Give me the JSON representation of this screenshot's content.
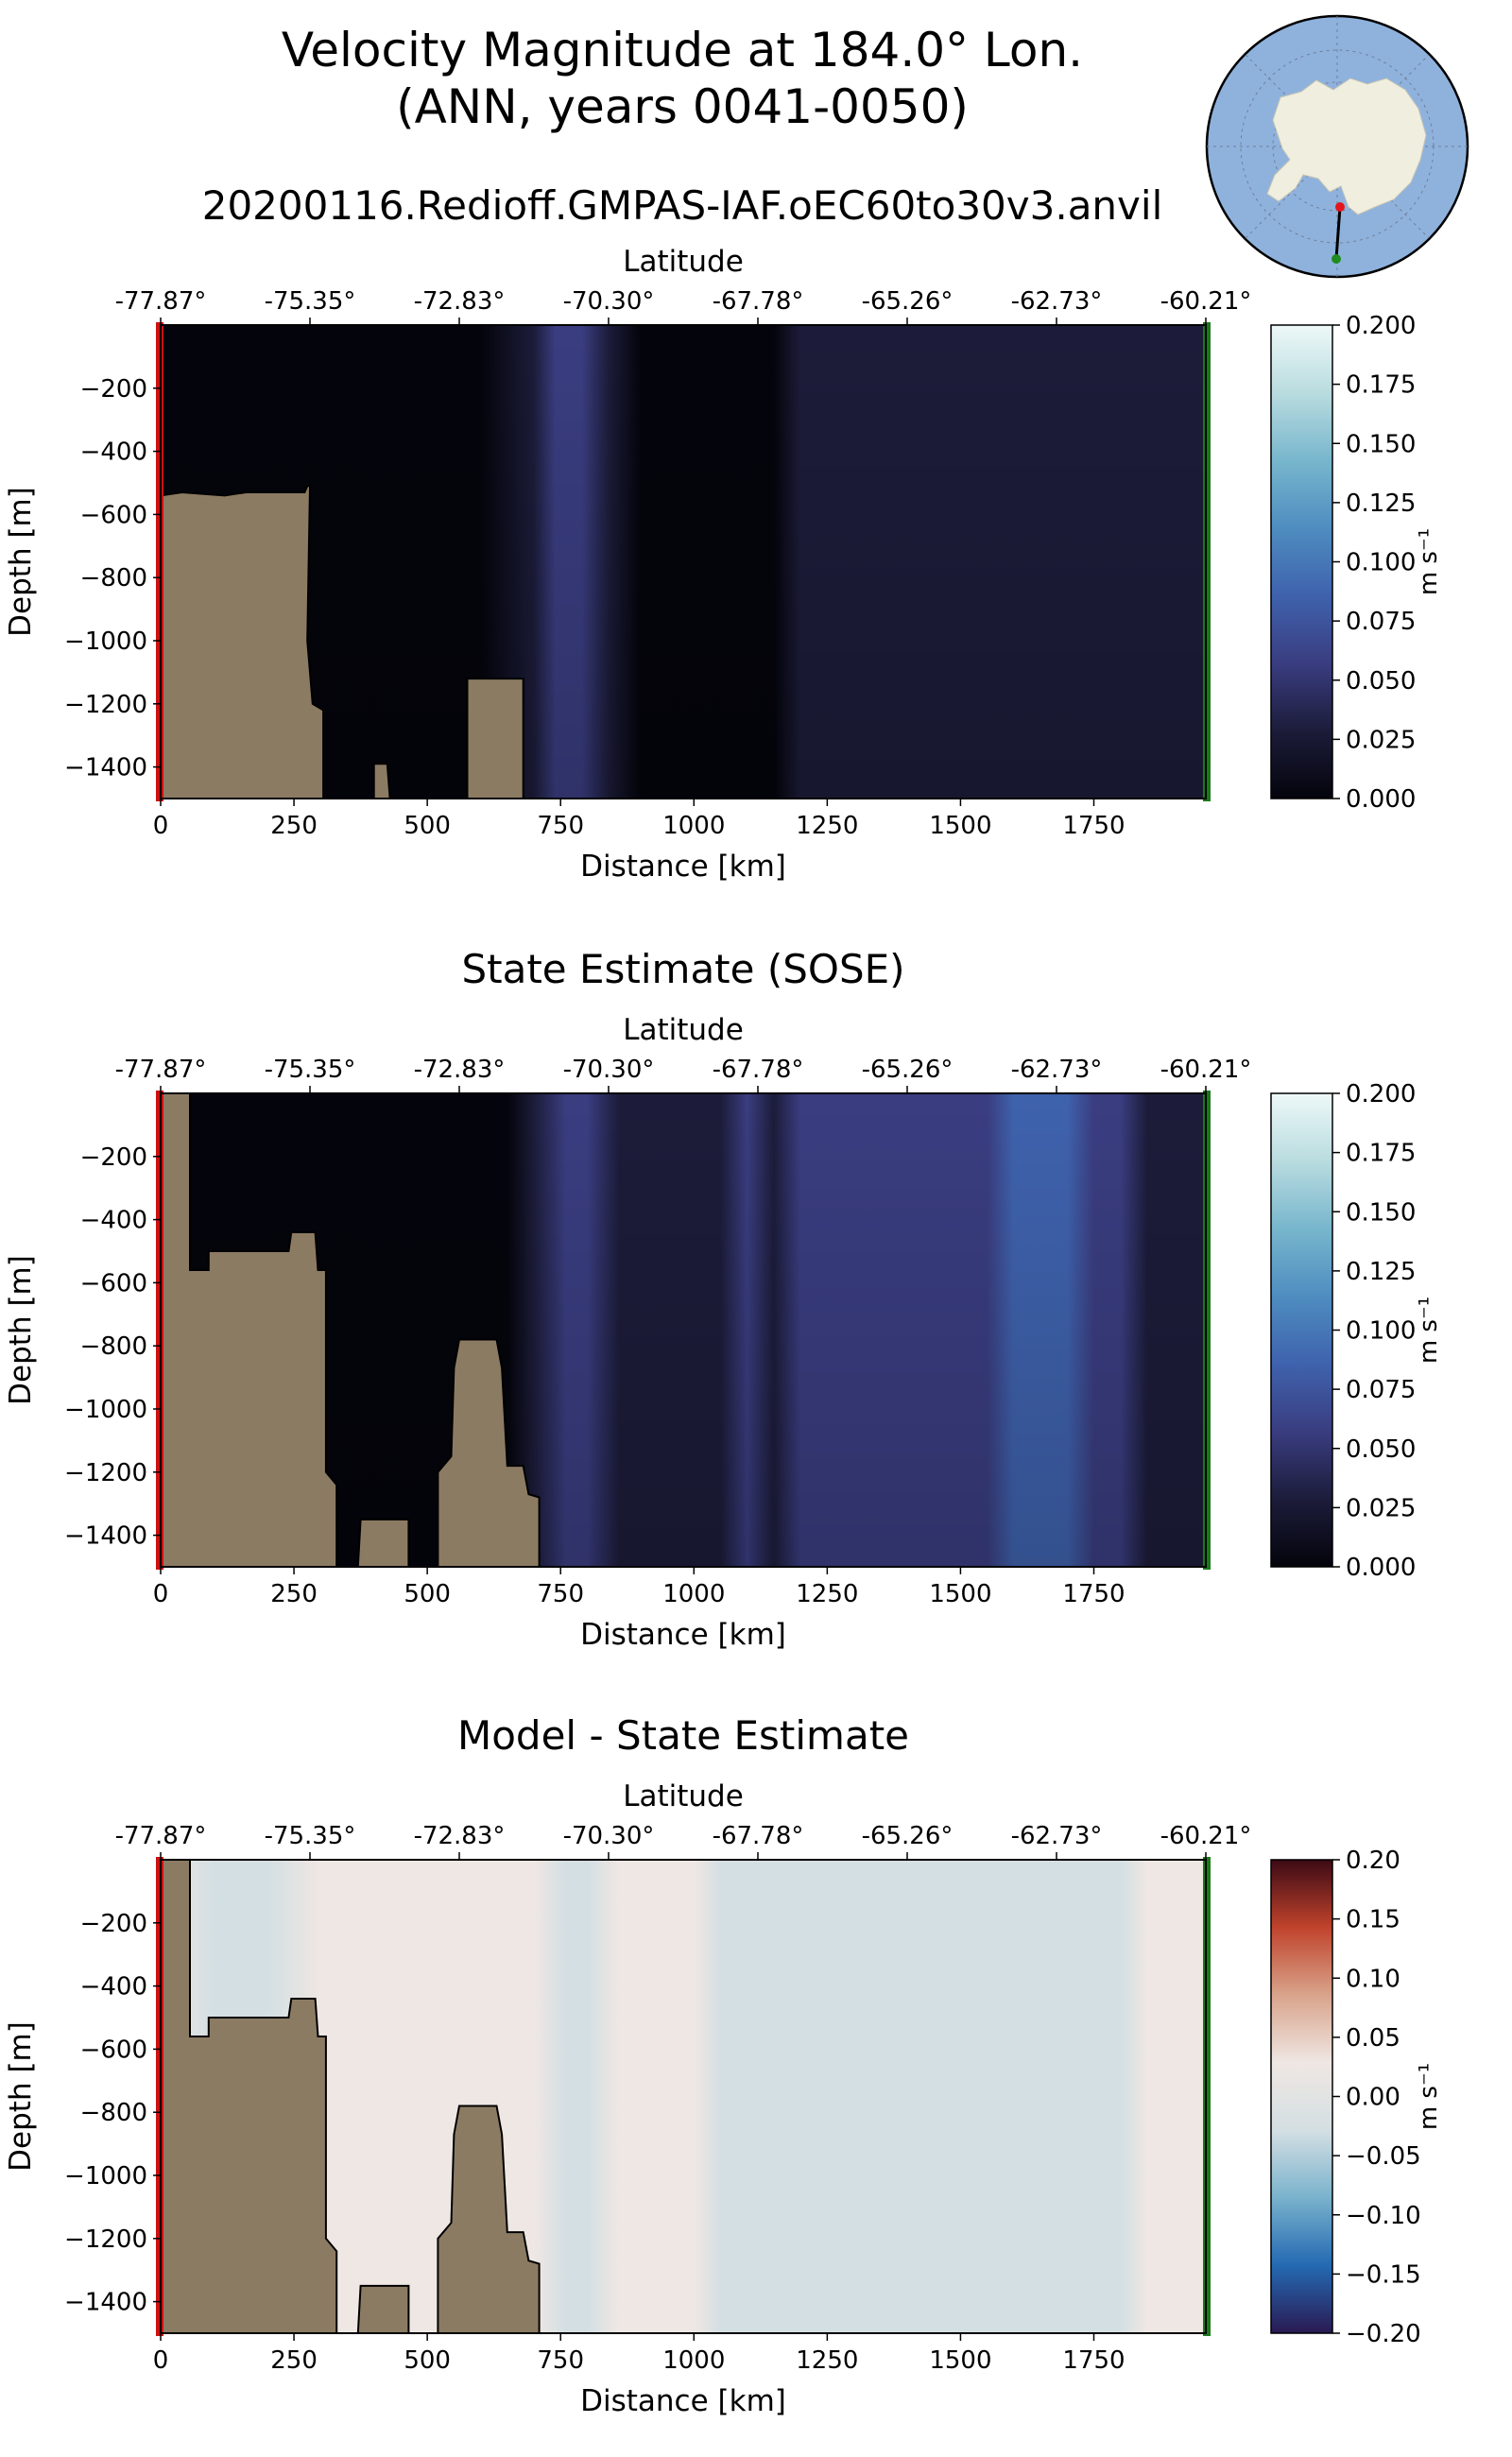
{
  "figure": {
    "title_line1": "Velocity Magnitude at 184.0° Lon.",
    "title_line2": "(ANN, years 0041-0050)",
    "run_name": "20200116.Redioff.GMPAS-IAF.oEC60to30v3.anvil"
  },
  "inset_map": {
    "type": "south-polar-stereographic-map",
    "ocean_color": "#8fb2dd",
    "land_color": "#f0eedf",
    "transect": {
      "start_marker_color": "#e5151b",
      "end_marker_color": "#1e8c1e"
    }
  },
  "colors": {
    "land_mask": "#8c7b63",
    "start_edge": "#cc1111",
    "end_edge": "#1a7a1a",
    "cmap_velocity": [
      "#04040c",
      "#1c1c3a",
      "#3a3d80",
      "#3f62ad",
      "#4e8dc0",
      "#78b6cd",
      "#b9dcdf",
      "#eef8f8"
    ],
    "cmap_diff": [
      "#2a1a52",
      "#2469b2",
      "#79b2cc",
      "#d4dfe3",
      "#efe7e3",
      "#d9a38b",
      "#c0432c",
      "#3c0a15"
    ]
  },
  "chart_data": [
    {
      "type": "heatmap",
      "title": "",
      "xlabel": "Distance [km]",
      "ylabel": "Depth [m]",
      "x2label": "Latitude",
      "xlim": [
        0,
        1960
      ],
      "ylim": [
        -1500,
        0
      ],
      "xticks": [
        0,
        250,
        500,
        750,
        1000,
        1250,
        1500,
        1750
      ],
      "yticks": [
        -200,
        -400,
        -600,
        -800,
        -1000,
        -1200,
        -1400
      ],
      "latitude_ticks": [
        "-77.87°",
        "-75.35°",
        "-72.83°",
        "-70.30°",
        "-67.78°",
        "-65.26°",
        "-62.73°",
        "-60.21°"
      ],
      "colorbar": {
        "label": "m s⁻¹",
        "vmin": 0.0,
        "vmax": 0.2,
        "ticks": [
          "0.000",
          "0.025",
          "0.050",
          "0.075",
          "0.100",
          "0.125",
          "0.150",
          "0.175",
          "0.200"
        ],
        "colormap": "velocity"
      },
      "field_profile": {
        "distance_km": [
          0,
          150,
          300,
          420,
          600,
          700,
          740,
          790,
          840,
          900,
          1000,
          1100,
          1150,
          1200,
          1250,
          1300,
          1350,
          1400,
          1450,
          1500,
          1550,
          1600,
          1650,
          1700,
          1750,
          1800,
          1850,
          1900,
          1960
        ],
        "speed_m_s": [
          0.012,
          0.008,
          0.008,
          0.01,
          0.014,
          0.02,
          0.048,
          0.05,
          0.03,
          0.012,
          0.008,
          0.006,
          0.012,
          0.02,
          0.028,
          0.028,
          0.025,
          0.025,
          0.028,
          0.03,
          0.033,
          0.033,
          0.033,
          0.033,
          0.033,
          0.033,
          0.038,
          0.04,
          0.04
        ]
      },
      "bathymetry": [
        [
          0,
          -1500
        ],
        [
          0,
          -540
        ],
        [
          40,
          -530
        ],
        [
          120,
          -540
        ],
        [
          160,
          -530
        ],
        [
          270,
          -530
        ],
        [
          275,
          -510
        ],
        [
          280,
          -510
        ],
        [
          275,
          -1000
        ],
        [
          285,
          -1200
        ],
        [
          305,
          -1220
        ],
        [
          305,
          -1500
        ],
        [
          400,
          -1500
        ],
        [
          400,
          -1390
        ],
        [
          425,
          -1390
        ],
        [
          430,
          -1500
        ],
        [
          575,
          -1500
        ],
        [
          575,
          -1120
        ],
        [
          680,
          -1120
        ],
        [
          680,
          -1500
        ]
      ]
    },
    {
      "type": "heatmap",
      "title": "State Estimate (SOSE)",
      "xlabel": "Distance [km]",
      "ylabel": "Depth [m]",
      "x2label": "Latitude",
      "xlim": [
        0,
        1960
      ],
      "ylim": [
        -1500,
        0
      ],
      "xticks": [
        0,
        250,
        500,
        750,
        1000,
        1250,
        1500,
        1750
      ],
      "yticks": [
        -200,
        -400,
        -600,
        -800,
        -1000,
        -1200,
        -1400
      ],
      "latitude_ticks": [
        "-77.87°",
        "-75.35°",
        "-72.83°",
        "-70.30°",
        "-67.78°",
        "-65.26°",
        "-62.73°",
        "-60.21°"
      ],
      "colorbar": {
        "label": "m s⁻¹",
        "vmin": 0.0,
        "vmax": 0.2,
        "ticks": [
          "0.000",
          "0.025",
          "0.050",
          "0.075",
          "0.100",
          "0.125",
          "0.150",
          "0.175",
          "0.200"
        ],
        "colormap": "velocity"
      },
      "field_profile": {
        "distance_km": [
          0,
          150,
          300,
          500,
          650,
          700,
          760,
          800,
          860,
          950,
          1050,
          1100,
          1150,
          1200,
          1250,
          1300,
          1350,
          1400,
          1450,
          1500,
          1550,
          1600,
          1650,
          1700,
          1750,
          1800,
          1850,
          1900,
          1960
        ],
        "speed_m_s": [
          0.008,
          0.006,
          0.006,
          0.01,
          0.014,
          0.02,
          0.06,
          0.055,
          0.035,
          0.03,
          0.034,
          0.048,
          0.04,
          0.05,
          0.058,
          0.05,
          0.045,
          0.045,
          0.05,
          0.055,
          0.065,
          0.075,
          0.078,
          0.078,
          0.07,
          0.05,
          0.04,
          0.038,
          0.036
        ]
      },
      "bathymetry": [
        [
          0,
          -1500
        ],
        [
          0,
          0
        ],
        [
          55,
          0
        ],
        [
          55,
          -560
        ],
        [
          90,
          -560
        ],
        [
          90,
          -500
        ],
        [
          240,
          -500
        ],
        [
          245,
          -440
        ],
        [
          290,
          -440
        ],
        [
          295,
          -560
        ],
        [
          310,
          -560
        ],
        [
          310,
          -1200
        ],
        [
          330,
          -1240
        ],
        [
          330,
          -1500
        ],
        [
          370,
          -1500
        ],
        [
          375,
          -1350
        ],
        [
          465,
          -1350
        ],
        [
          465,
          -1500
        ],
        [
          520,
          -1500
        ],
        [
          520,
          -1200
        ],
        [
          545,
          -1150
        ],
        [
          550,
          -870
        ],
        [
          560,
          -780
        ],
        [
          630,
          -780
        ],
        [
          640,
          -870
        ],
        [
          650,
          -1180
        ],
        [
          680,
          -1180
        ],
        [
          690,
          -1270
        ],
        [
          710,
          -1280
        ],
        [
          710,
          -1500
        ]
      ]
    },
    {
      "type": "heatmap",
      "title": "Model - State Estimate",
      "xlabel": "Distance [km]",
      "ylabel": "Depth [m]",
      "x2label": "Latitude",
      "xlim": [
        0,
        1960
      ],
      "ylim": [
        -1500,
        0
      ],
      "xticks": [
        0,
        250,
        500,
        750,
        1000,
        1250,
        1500,
        1750
      ],
      "yticks": [
        -200,
        -400,
        -600,
        -800,
        -1000,
        -1200,
        -1400
      ],
      "latitude_ticks": [
        "-77.87°",
        "-75.35°",
        "-72.83°",
        "-70.30°",
        "-67.78°",
        "-65.26°",
        "-62.73°",
        "-60.21°"
      ],
      "colorbar": {
        "label": "m s⁻¹",
        "vmin": -0.2,
        "vmax": 0.2,
        "ticks": [
          "0.20",
          "0.15",
          "0.10",
          "0.05",
          "0.00",
          "−0.05",
          "−0.10",
          "−0.15",
          "−0.20"
        ],
        "colormap": "diff"
      },
      "field_profile": {
        "distance_km": [
          0,
          100,
          200,
          300,
          500,
          650,
          700,
          760,
          800,
          860,
          900,
          950,
          1000,
          1050,
          1100,
          1150,
          1200,
          1250,
          1300,
          1400,
          1500,
          1550,
          1600,
          1650,
          1700,
          1750,
          1800,
          1850,
          1900,
          1960
        ],
        "diff_m_s": [
          0.0,
          -0.006,
          -0.004,
          0.0,
          0.0,
          0.004,
          0.01,
          -0.018,
          -0.008,
          0.006,
          0.018,
          0.012,
          0.004,
          -0.008,
          -0.014,
          -0.03,
          -0.02,
          -0.018,
          -0.025,
          -0.02,
          -0.022,
          -0.03,
          -0.048,
          -0.052,
          -0.05,
          -0.04,
          -0.015,
          0.012,
          0.008,
          0.004
        ]
      },
      "bathymetry": [
        [
          0,
          -1500
        ],
        [
          0,
          0
        ],
        [
          55,
          0
        ],
        [
          55,
          -560
        ],
        [
          90,
          -560
        ],
        [
          90,
          -500
        ],
        [
          240,
          -500
        ],
        [
          245,
          -440
        ],
        [
          290,
          -440
        ],
        [
          295,
          -560
        ],
        [
          310,
          -560
        ],
        [
          310,
          -1200
        ],
        [
          330,
          -1240
        ],
        [
          330,
          -1500
        ],
        [
          370,
          -1500
        ],
        [
          375,
          -1350
        ],
        [
          465,
          -1350
        ],
        [
          465,
          -1500
        ],
        [
          520,
          -1500
        ],
        [
          520,
          -1200
        ],
        [
          545,
          -1150
        ],
        [
          550,
          -870
        ],
        [
          560,
          -780
        ],
        [
          630,
          -780
        ],
        [
          640,
          -870
        ],
        [
          650,
          -1180
        ],
        [
          680,
          -1180
        ],
        [
          690,
          -1270
        ],
        [
          710,
          -1280
        ],
        [
          710,
          -1500
        ]
      ]
    }
  ]
}
